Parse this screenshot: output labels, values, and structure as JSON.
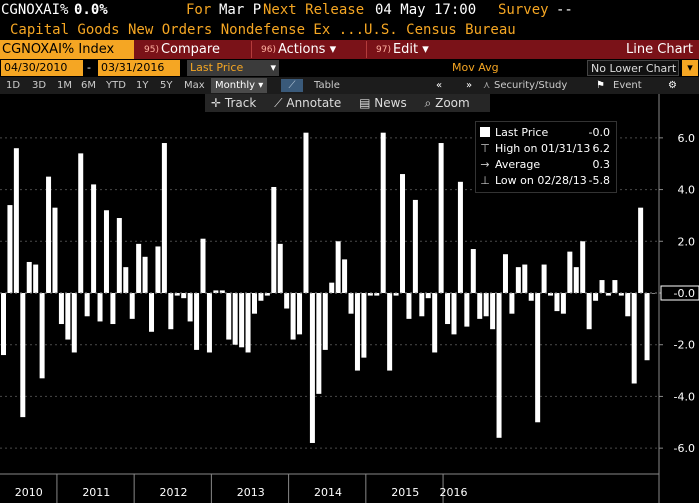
{
  "header": {
    "ticker": "CGNOXAI%",
    "change": "0.0%",
    "for_label": "For",
    "for_value": "Mar P",
    "next_release_label": "Next Release",
    "next_release_value": "04 May 17:00",
    "survey_label": "Survey",
    "survey_value": "--",
    "description": "Capital Goods New Orders Nondefense Ex ...U.S. Census Bureau"
  },
  "toolbar": {
    "index_label": "CGNOXAI% Index",
    "compare_num": "95)",
    "compare_label": "Compare",
    "actions_num": "96)",
    "actions_label": "Actions",
    "edit_num": "97)",
    "edit_label": "Edit",
    "chart_type": "Line Chart"
  },
  "controls": {
    "start_date": "04/30/2010",
    "end_date": "03/31/2016",
    "series_select": "Last Price",
    "study_label": "Mov Avg",
    "lower_chart_select": "No Lower Chart"
  },
  "periods": {
    "items": [
      "1D",
      "3D",
      "1M",
      "6M",
      "YTD",
      "1Y",
      "5Y",
      "Max"
    ],
    "frequency": "Monthly",
    "table_label": "Table",
    "security_study": "Security/Study",
    "event_label": "Event"
  },
  "tools": {
    "track": "Track",
    "annotate": "Annotate",
    "news": "News",
    "zoom": "Zoom"
  },
  "legend": {
    "last_price_label": "Last Price",
    "last_price_value": "-0.0",
    "high_label": "High on 01/31/13",
    "high_value": "6.2",
    "average_label": "Average",
    "average_value": "0.3",
    "low_label": "Low on 02/28/13",
    "low_value": "-5.8"
  },
  "colors": {
    "accent": "#f5a623",
    "toolbar_bg": "#7a1218",
    "bars": "#ffffff",
    "background": "#000000"
  },
  "chart_data": {
    "type": "bar",
    "title": "",
    "xlabel": "",
    "ylabel": "",
    "ylim": [
      -7,
      7
    ],
    "y_ticks": [
      "6.0",
      "4.0",
      "2.0",
      "-0.0",
      "-2.0",
      "-4.0",
      "-6.0"
    ],
    "x_tick_labels": [
      "2010",
      "2011",
      "2012",
      "2013",
      "2014",
      "2015",
      "2016"
    ],
    "last_value_marker": "-0.0",
    "series": [
      {
        "values": [
          -2.4,
          3.4,
          5.6,
          -4.8,
          1.2,
          1.1,
          -3.3,
          4.5,
          3.3,
          -1.2,
          -1.8,
          -2.3,
          5.4,
          -0.9,
          4.2,
          -1.1,
          3.2,
          -1.2,
          2.9,
          1.0,
          -1.0,
          1.9,
          1.4,
          -1.5,
          1.8,
          5.8,
          -1.4,
          -0.1,
          -0.2,
          -1.1,
          -2.2,
          2.1,
          -2.3,
          0.1,
          0.1,
          -1.8,
          -2.0,
          -2.1,
          -2.3,
          -0.8,
          -0.3,
          -0.1,
          4.1,
          1.9,
          -0.6,
          -1.8,
          -1.6,
          6.2,
          -5.8,
          -3.9,
          -2.2,
          0.4,
          2.0,
          1.3,
          -0.8,
          -3.0,
          -2.5,
          -0.1,
          -0.1,
          6.2,
          -3.0,
          -0.1,
          4.6,
          -1.0,
          3.6,
          -0.9,
          -0.2,
          -2.3,
          5.8,
          -1.2,
          -1.6,
          4.3,
          -1.3,
          1.7,
          -1.0,
          -0.9,
          -1.4,
          -5.6,
          1.5,
          -0.8,
          1.0,
          1.1,
          -0.3,
          -5.0,
          1.1,
          -0.1,
          -0.7,
          -0.8,
          1.6,
          1.0,
          2.0,
          -1.4,
          -0.3,
          0.5,
          -0.1,
          0.5,
          -0.1,
          -0.9,
          -3.5,
          3.3,
          -2.6,
          -0.0
        ]
      }
    ]
  }
}
